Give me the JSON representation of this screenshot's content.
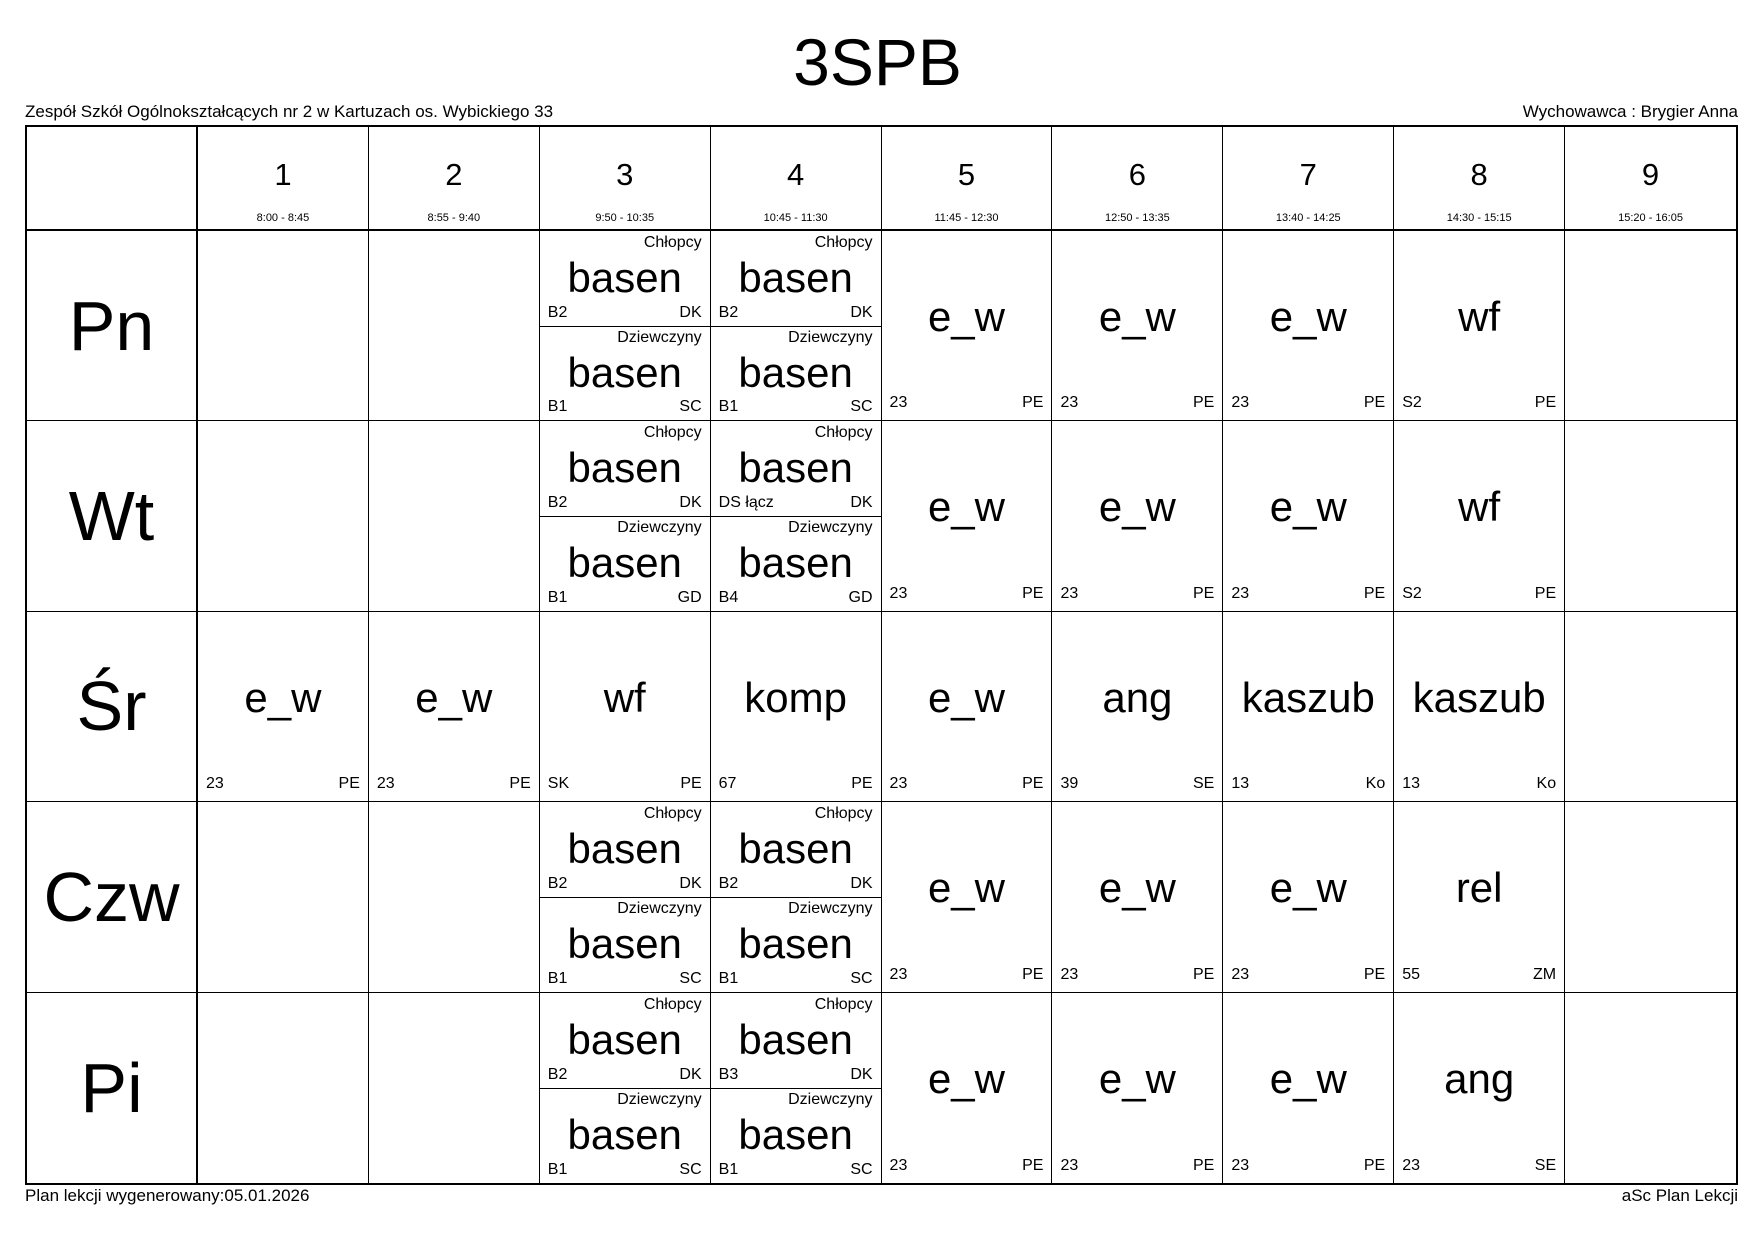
{
  "header": {
    "title": "3SPB",
    "school": "Zespół Szkół Ogólnokształcących nr 2 w Kartuzach os. Wybickiego 33",
    "homeroom": "Wychowawca : Brygier Anna"
  },
  "footer": {
    "generated": "Plan lekcji wygenerowany:05.01.2026",
    "brand": "aSc Plan Lekcji"
  },
  "periods": [
    {
      "num": "1",
      "time": "8:00 - 8:45"
    },
    {
      "num": "2",
      "time": "8:55 - 9:40"
    },
    {
      "num": "3",
      "time": "9:50 - 10:35"
    },
    {
      "num": "4",
      "time": "10:45 - 11:30"
    },
    {
      "num": "5",
      "time": "11:45 - 12:30"
    },
    {
      "num": "6",
      "time": "12:50 - 13:35"
    },
    {
      "num": "7",
      "time": "13:40 - 14:25"
    },
    {
      "num": "8",
      "time": "14:30 - 15:15"
    },
    {
      "num": "9",
      "time": "15:20 - 16:05"
    }
  ],
  "days": [
    {
      "label": "Pn",
      "cells": [
        null,
        null,
        {
          "groups": [
            {
              "group": "Chłopcy",
              "subject": "basen",
              "room": "B2",
              "teacher": "DK"
            },
            {
              "group": "Dziewczyny",
              "subject": "basen",
              "room": "B1",
              "teacher": "SC"
            }
          ]
        },
        {
          "groups": [
            {
              "group": "Chłopcy",
              "subject": "basen",
              "room": "B2",
              "teacher": "DK"
            },
            {
              "group": "Dziewczyny",
              "subject": "basen",
              "room": "B1",
              "teacher": "SC"
            }
          ]
        },
        {
          "subject": "e_w",
          "room": "23",
          "teacher": "PE"
        },
        {
          "subject": "e_w",
          "room": "23",
          "teacher": "PE"
        },
        {
          "subject": "e_w",
          "room": "23",
          "teacher": "PE"
        },
        {
          "subject": "wf",
          "room": "S2",
          "teacher": "PE"
        },
        null
      ]
    },
    {
      "label": "Wt",
      "cells": [
        null,
        null,
        {
          "groups": [
            {
              "group": "Chłopcy",
              "subject": "basen",
              "room": "B2",
              "teacher": "DK"
            },
            {
              "group": "Dziewczyny",
              "subject": "basen",
              "room": "B1",
              "teacher": "GD"
            }
          ]
        },
        {
          "groups": [
            {
              "group": "Chłopcy",
              "subject": "basen",
              "room": "DS łącz",
              "teacher": "DK"
            },
            {
              "group": "Dziewczyny",
              "subject": "basen",
              "room": "B4",
              "teacher": "GD"
            }
          ]
        },
        {
          "subject": "e_w",
          "room": "23",
          "teacher": "PE"
        },
        {
          "subject": "e_w",
          "room": "23",
          "teacher": "PE"
        },
        {
          "subject": "e_w",
          "room": "23",
          "teacher": "PE"
        },
        {
          "subject": "wf",
          "room": "S2",
          "teacher": "PE"
        },
        null
      ]
    },
    {
      "label": "Śr",
      "cells": [
        {
          "subject": "e_w",
          "room": "23",
          "teacher": "PE"
        },
        {
          "subject": "e_w",
          "room": "23",
          "teacher": "PE"
        },
        {
          "subject": "wf",
          "room": "SK",
          "teacher": "PE"
        },
        {
          "subject": "komp",
          "room": "67",
          "teacher": "PE"
        },
        {
          "subject": "e_w",
          "room": "23",
          "teacher": "PE"
        },
        {
          "subject": "ang",
          "room": "39",
          "teacher": "SE"
        },
        {
          "subject": "kaszub",
          "room": "13",
          "teacher": "Ko"
        },
        {
          "subject": "kaszub",
          "room": "13",
          "teacher": "Ko"
        },
        null
      ]
    },
    {
      "label": "Czw",
      "cells": [
        null,
        null,
        {
          "groups": [
            {
              "group": "Chłopcy",
              "subject": "basen",
              "room": "B2",
              "teacher": "DK"
            },
            {
              "group": "Dziewczyny",
              "subject": "basen",
              "room": "B1",
              "teacher": "SC"
            }
          ]
        },
        {
          "groups": [
            {
              "group": "Chłopcy",
              "subject": "basen",
              "room": "B2",
              "teacher": "DK"
            },
            {
              "group": "Dziewczyny",
              "subject": "basen",
              "room": "B1",
              "teacher": "SC"
            }
          ]
        },
        {
          "subject": "e_w",
          "room": "23",
          "teacher": "PE"
        },
        {
          "subject": "e_w",
          "room": "23",
          "teacher": "PE"
        },
        {
          "subject": "e_w",
          "room": "23",
          "teacher": "PE"
        },
        {
          "subject": "rel",
          "room": "55",
          "teacher": "ZM"
        },
        null
      ]
    },
    {
      "label": "Pi",
      "cells": [
        null,
        null,
        {
          "groups": [
            {
              "group": "Chłopcy",
              "subject": "basen",
              "room": "B2",
              "teacher": "DK"
            },
            {
              "group": "Dziewczyny",
              "subject": "basen",
              "room": "B1",
              "teacher": "SC"
            }
          ]
        },
        {
          "groups": [
            {
              "group": "Chłopcy",
              "subject": "basen",
              "room": "B3",
              "teacher": "DK"
            },
            {
              "group": "Dziewczyny",
              "subject": "basen",
              "room": "B1",
              "teacher": "SC"
            }
          ]
        },
        {
          "subject": "e_w",
          "room": "23",
          "teacher": "PE"
        },
        {
          "subject": "e_w",
          "room": "23",
          "teacher": "PE"
        },
        {
          "subject": "e_w",
          "room": "23",
          "teacher": "PE"
        },
        {
          "subject": "ang",
          "room": "23",
          "teacher": "SE"
        },
        null
      ]
    }
  ]
}
